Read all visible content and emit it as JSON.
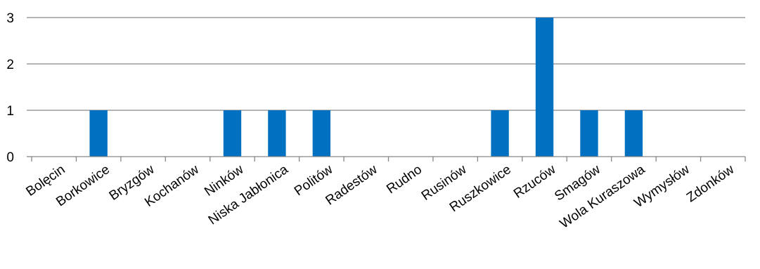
{
  "chart_data": {
    "type": "bar",
    "categories": [
      "Bolęcin",
      "Borkowice",
      "Bryzgów",
      "Kochanów",
      "Ninków",
      "Niska Jabłonica",
      "Politów",
      "Radestów",
      "Rudno",
      "Rusinów",
      "Ruszkowice",
      "Rzuców",
      "Smagów",
      "Wola Kuraszowa",
      "Wymysłów",
      "Zdonków"
    ],
    "values": [
      0,
      1,
      0,
      0,
      1,
      1,
      1,
      0,
      0,
      0,
      1,
      3,
      1,
      1,
      0,
      0
    ],
    "ylim": [
      0,
      3
    ],
    "yticks": [
      "0",
      "1",
      "2",
      "3"
    ],
    "grid": true,
    "bar_color": "#0070C0",
    "legend": "none"
  }
}
